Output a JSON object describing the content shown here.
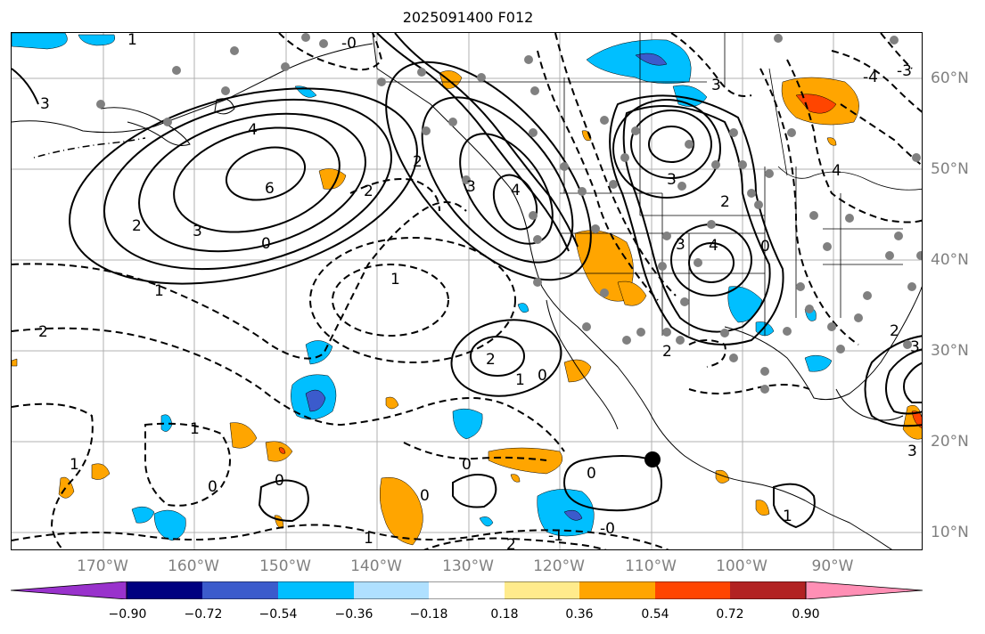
{
  "title": "2025091400 F012",
  "lon_labels": [
    "170°W",
    "160°W",
    "150°W",
    "140°W",
    "130°W",
    "120°W",
    "110°W",
    "100°W",
    "90°W"
  ],
  "lat_labels": [
    "60°N",
    "50°N",
    "40°N",
    "30°N",
    "20°N",
    "10°N"
  ],
  "colorbar": {
    "colors": [
      "#9932cc",
      "#000080",
      "#3b5bcc",
      "#00bfff",
      "#afe0ff",
      "#ffffff",
      "#ffeb8c",
      "#ffa500",
      "#ff4500",
      "#b22222",
      "#ff8fb5"
    ],
    "tick_labels": [
      "−0.90",
      "−0.72",
      "−0.54",
      "−0.36",
      "−0.18",
      "0.18",
      "0.36",
      "0.54",
      "0.72",
      "0.90"
    ]
  },
  "contour_labels": {
    "l1": "2",
    "l2": "3",
    "l3": "4",
    "l4": "6",
    "l5": "3",
    "l6": "2",
    "l7": "0",
    "l8": "1",
    "l9": "2",
    "l10": "1",
    "l11": "-0",
    "l12": "3",
    "l13": "2",
    "l14": "1",
    "l15": "0",
    "l16": "0",
    "l17": "2",
    "l18": "4",
    "l19": "3",
    "l20": "2",
    "l21": "4",
    "l22": "3",
    "l23": "0",
    "l24": "-4",
    "l25": "-3",
    "l26": "3",
    "l27": "1",
    "l28": "0",
    "l29": "1",
    "l30": "0",
    "l31": "0",
    "l32": "1",
    "l33": "2",
    "l34": "-0",
    "l35": "0",
    "l36": "-1",
    "l37": "1",
    "l38": "2",
    "l39": "4",
    "l40": "2",
    "l41": "3",
    "l42": "1",
    "l43": "3"
  }
}
